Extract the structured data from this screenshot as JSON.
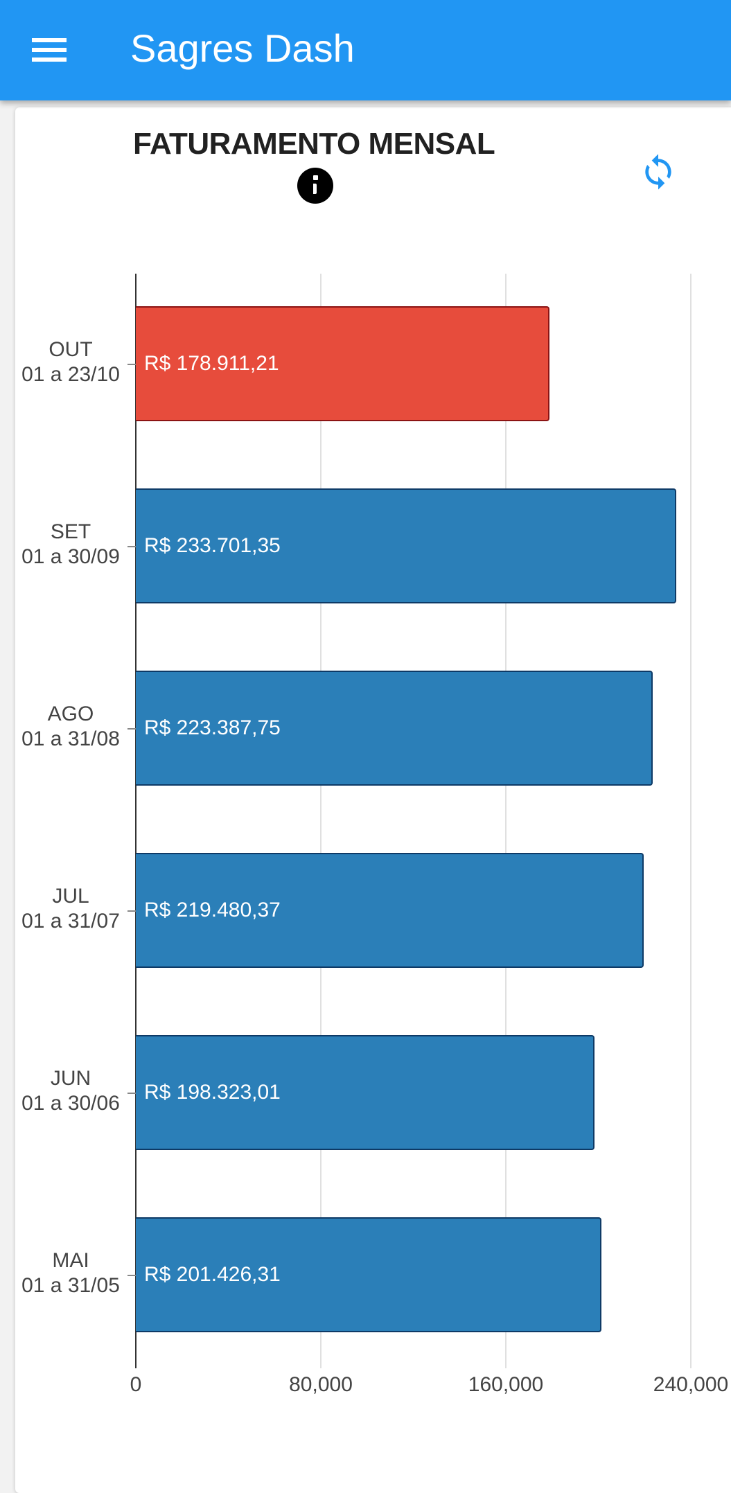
{
  "appbar": {
    "title": "Sagres Dash",
    "menu_icon": "hamburger-menu-icon"
  },
  "card": {
    "title": "FATURAMENTO MENSAL",
    "info_icon": "info-icon",
    "refresh_icon": "refresh-icon"
  },
  "colors": {
    "appbar": "#2196F3",
    "bar_default": "#2B7FB8",
    "bar_default_border": "#0E3A66",
    "bar_highlight": "#E74C3C",
    "bar_highlight_border": "#8B1414",
    "refresh": "#2196F3"
  },
  "chart_data": {
    "type": "bar",
    "orientation": "horizontal",
    "title": "FATURAMENTO MENSAL",
    "xlabel": "",
    "ylabel": "",
    "xlim": [
      0,
      240000
    ],
    "x_ticks": [
      "0",
      "80,000",
      "160,000",
      "240,000"
    ],
    "grid": true,
    "categories": [
      {
        "month": "OUT",
        "period": "01 a 23/10"
      },
      {
        "month": "SET",
        "period": "01 a 30/09"
      },
      {
        "month": "AGO",
        "period": "01 a 31/08"
      },
      {
        "month": "JUL",
        "period": "01 a 31/07"
      },
      {
        "month": "JUN",
        "period": "01 a 30/06"
      },
      {
        "month": "MAI",
        "period": "01 a 31/05"
      }
    ],
    "values": [
      178911.21,
      233701.35,
      223387.75,
      219480.37,
      198323.01,
      201426.31
    ],
    "labels": [
      "R$ 178.911,21",
      "R$ 233.701,35",
      "R$ 223.387,75",
      "R$ 219.480,37",
      "R$ 198.323,01",
      "R$ 201.426,31"
    ],
    "highlighted_index": 0
  }
}
